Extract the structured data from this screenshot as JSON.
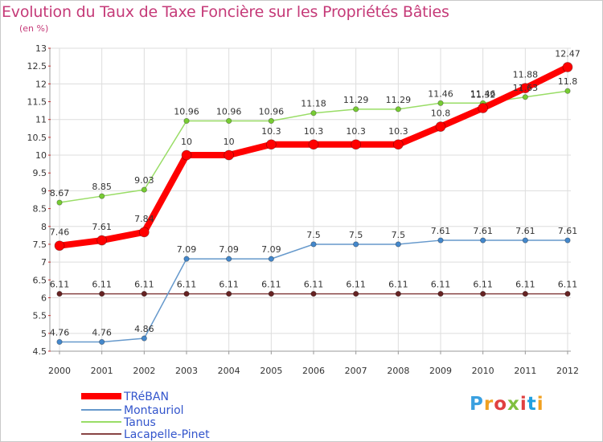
{
  "header": {
    "title": "Evolution du Taux de Taxe Foncière sur les Propriétés Bâties",
    "unit": "(en %)"
  },
  "brand": {
    "name": "Proxiti",
    "colors": [
      "#3aa0e0",
      "#f0a020",
      "#e04040",
      "#80c040",
      "#e04040",
      "#20a0e0",
      "#f0a020"
    ]
  },
  "chart_data": {
    "type": "line",
    "title": "Evolution du Taux de Taxe Foncière sur les Propriétés Bâties",
    "ylabel": "(en %)",
    "xlabel": "",
    "x": [
      "2000",
      "2001",
      "2002",
      "2003",
      "2004",
      "2005",
      "2006",
      "2007",
      "2008",
      "2009",
      "2010",
      "2011",
      "2012"
    ],
    "ylim": [
      4.5,
      13
    ],
    "yticks": [
      4.5,
      5,
      5.5,
      6,
      6.5,
      7,
      7.5,
      8,
      8.5,
      9,
      9.5,
      10,
      10.5,
      11,
      11.5,
      12,
      12.5,
      13
    ],
    "legend_position": "bottom-left",
    "series": [
      {
        "name": "TRéBAN",
        "color": "#ff0000",
        "values": [
          7.46,
          7.61,
          7.84,
          10,
          10,
          10.3,
          10.3,
          10.3,
          10.3,
          10.8,
          11.32,
          11.88,
          12.47
        ],
        "labels": [
          "7.46",
          "7.61",
          "7.84",
          "10",
          "10",
          "10.3",
          "10.3",
          "10.3",
          "10.3",
          "10.8",
          "11.32",
          "11.88",
          "12.47"
        ]
      },
      {
        "name": "Montauriol",
        "color": "#6699cc",
        "values": [
          4.76,
          4.76,
          4.86,
          7.09,
          7.09,
          7.09,
          7.5,
          7.5,
          7.5,
          7.61,
          7.61,
          7.61,
          7.61
        ],
        "labels": [
          "4.76",
          "4.76",
          "4.86",
          "7.09",
          "7.09",
          "7.09",
          "7.5",
          "7.5",
          "7.5",
          "7.61",
          "7.61",
          "7.61",
          "7.61"
        ]
      },
      {
        "name": "Tanus",
        "color": "#99dd66",
        "values": [
          8.67,
          8.85,
          9.03,
          10.96,
          10.96,
          10.96,
          11.18,
          11.29,
          11.29,
          11.46,
          11.46,
          11.63,
          11.8
        ],
        "labels": [
          "8.67",
          "8.85",
          "9.03",
          "10.96",
          "10.96",
          "10.96",
          "11.18",
          "11.29",
          "11.29",
          "11.46",
          "11.46",
          "11.63",
          "11.8"
        ]
      },
      {
        "name": "Lacapelle-Pinet",
        "color": "#884444",
        "values": [
          6.11,
          6.11,
          6.11,
          6.11,
          6.11,
          6.11,
          6.11,
          6.11,
          6.11,
          6.11,
          6.11,
          6.11,
          6.11
        ],
        "labels": [
          "6.11",
          "6.11",
          "6.11",
          "6.11",
          "6.11",
          "6.11",
          "6.11",
          "6.11",
          "6.11",
          "6.11",
          "6.11",
          "6.11",
          "6.11"
        ]
      }
    ]
  }
}
